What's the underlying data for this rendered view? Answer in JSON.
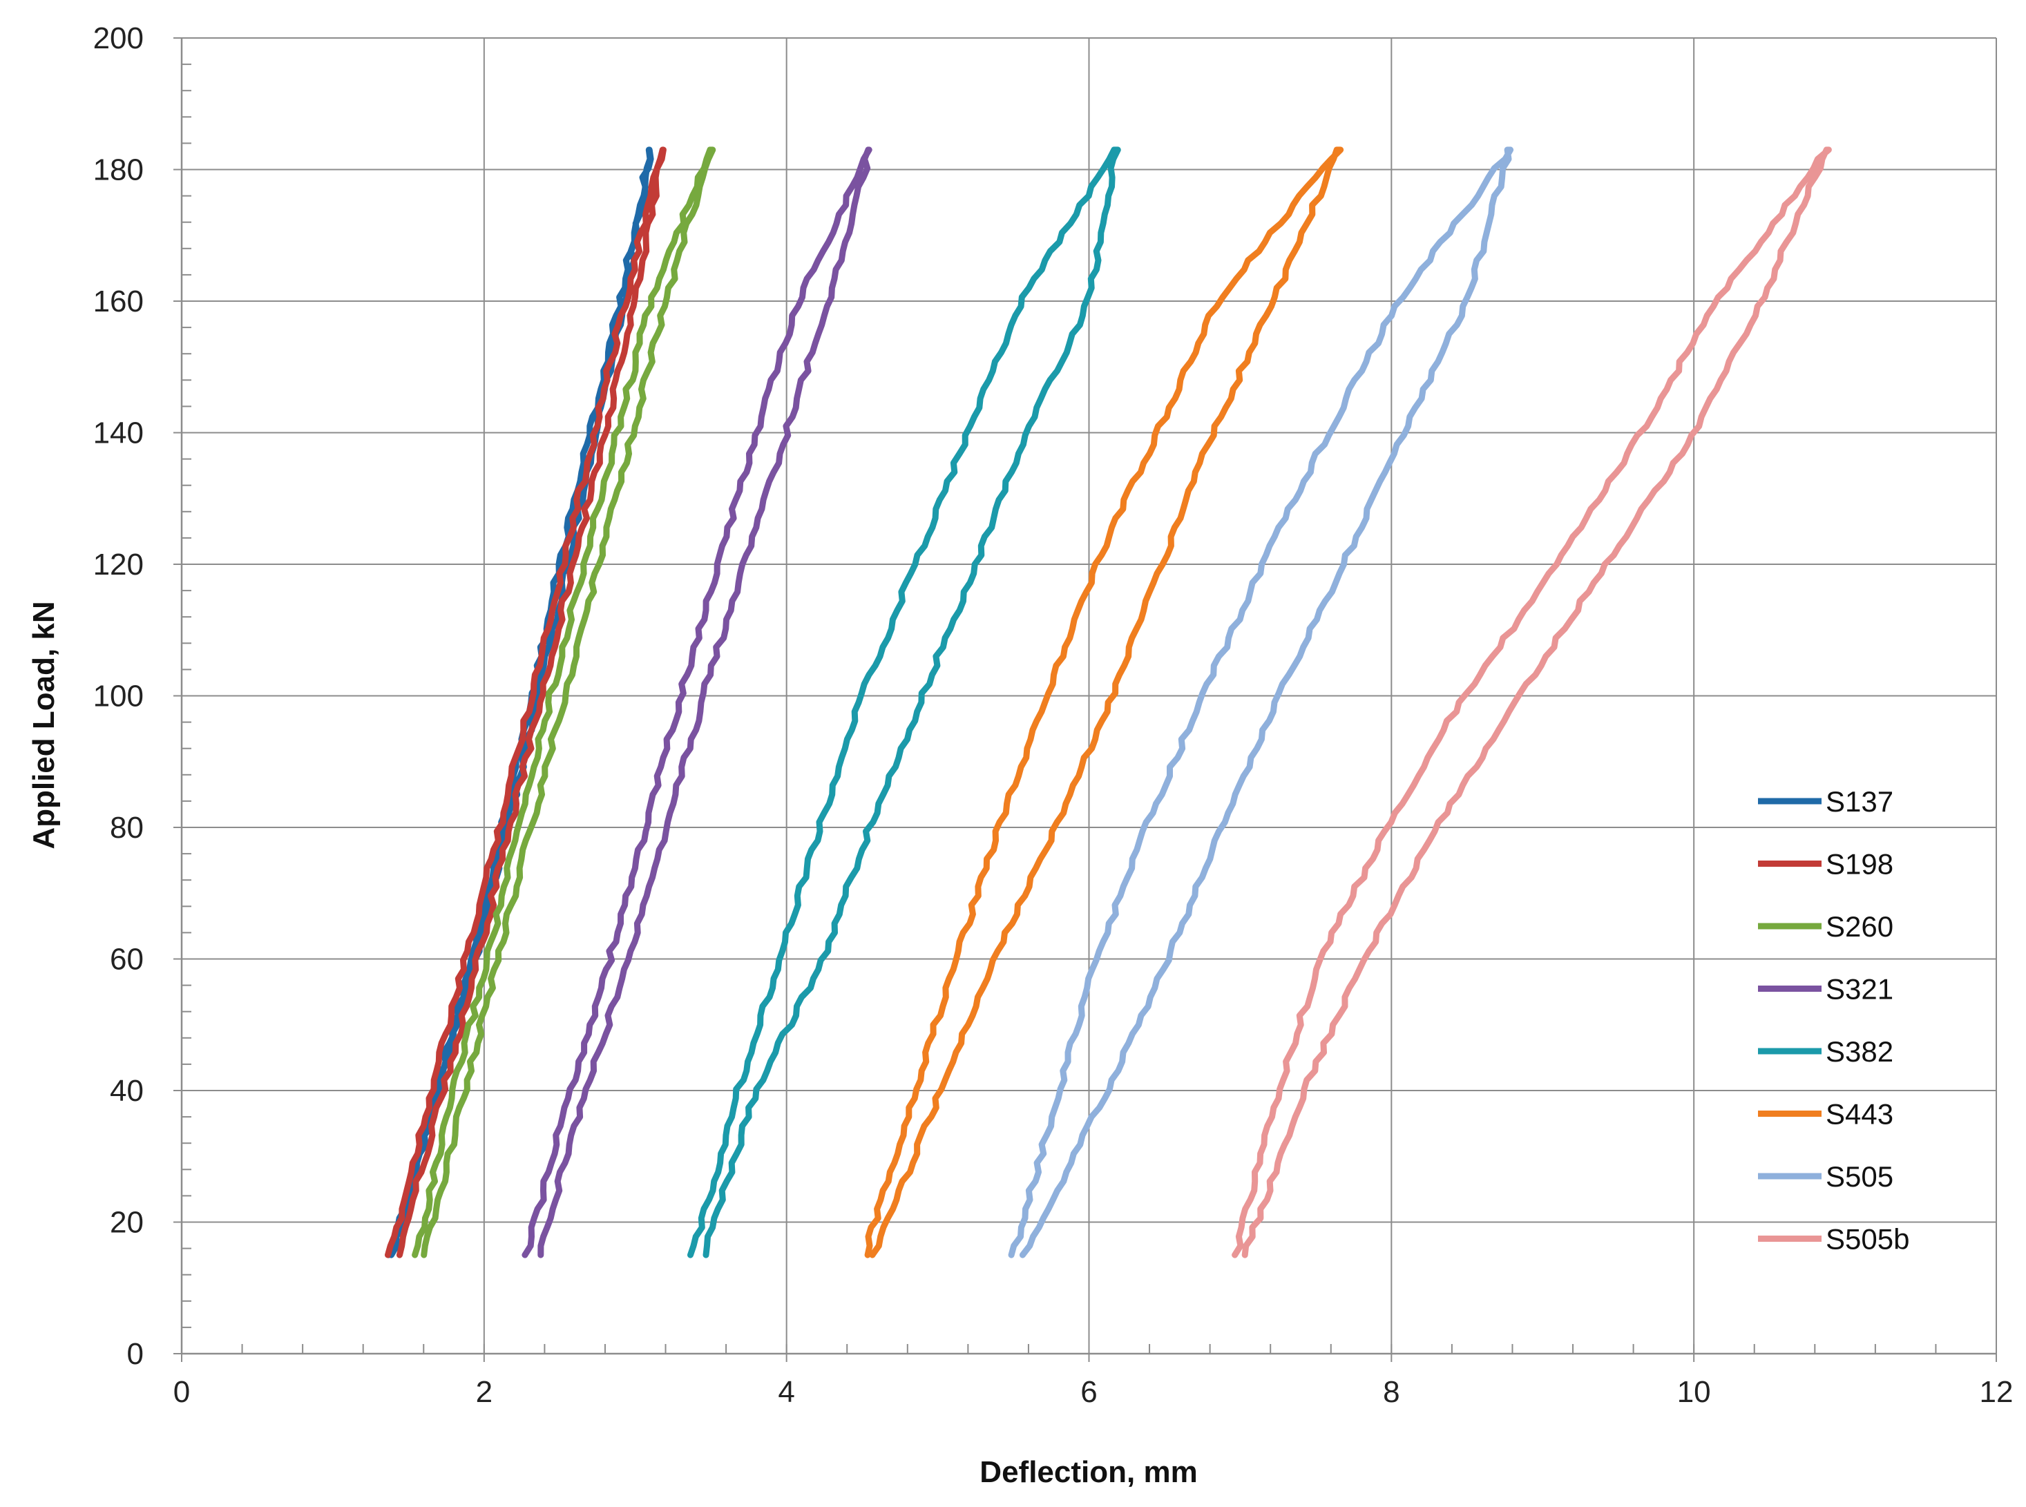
{
  "chart_data": {
    "type": "line",
    "title": "",
    "xlabel": "Deflection, mm",
    "ylabel": "Applied Load, kN",
    "xlim": [
      0,
      12
    ],
    "ylim": [
      0,
      200
    ],
    "x_major_ticks": [
      0,
      2,
      4,
      6,
      8,
      10,
      12
    ],
    "y_major_ticks": [
      0,
      20,
      40,
      60,
      80,
      100,
      120,
      140,
      160,
      180,
      200
    ],
    "x_minor_step": 0.4,
    "y_minor_step": 4,
    "grid": true,
    "legend_position": "bottom-right",
    "series": [
      {
        "name": "S137",
        "color": "#1f6aa8",
        "load_y": [
          15,
          40,
          60,
          80,
          100,
          120,
          140,
          160,
          183
        ],
        "x": [
          1.38,
          1.68,
          1.92,
          2.12,
          2.32,
          2.5,
          2.7,
          2.9,
          3.1
        ],
        "unload_y": [
          183,
          160,
          140,
          120,
          100,
          80,
          60,
          40,
          15
        ],
        "unload_x": [
          3.1,
          2.93,
          2.74,
          2.55,
          2.36,
          2.15,
          1.94,
          1.7,
          1.4
        ]
      },
      {
        "name": "S198",
        "color": "#c23b36",
        "load_y": [
          15,
          40,
          60,
          80,
          100,
          120,
          140,
          160,
          183
        ],
        "x": [
          1.38,
          1.65,
          1.88,
          2.1,
          2.31,
          2.52,
          2.73,
          2.93,
          3.18
        ],
        "unload_y": [
          183,
          160,
          140,
          120,
          100,
          80,
          60,
          40,
          15
        ],
        "unload_x": [
          3.18,
          3.0,
          2.8,
          2.59,
          2.38,
          2.17,
          1.96,
          1.73,
          1.43
        ]
      },
      {
        "name": "S260",
        "color": "#76a93e",
        "load_y": [
          15,
          40,
          60,
          80,
          100,
          120,
          140,
          160,
          183
        ],
        "x": [
          1.55,
          1.8,
          2.02,
          2.23,
          2.44,
          2.66,
          2.88,
          3.1,
          3.5
        ],
        "unload_y": [
          183,
          160,
          140,
          120,
          100,
          80,
          60,
          40,
          15
        ],
        "unload_x": [
          3.5,
          3.2,
          2.98,
          2.76,
          2.53,
          2.31,
          2.09,
          1.87,
          1.61
        ]
      },
      {
        "name": "S321",
        "color": "#7a52a0",
        "load_y": [
          15,
          40,
          60,
          80,
          100,
          120,
          140,
          160,
          183
        ],
        "x": [
          2.28,
          2.57,
          2.83,
          3.07,
          3.3,
          3.55,
          3.8,
          4.08,
          4.55
        ],
        "unload_y": [
          183,
          160,
          140,
          120,
          100,
          80,
          60,
          40,
          15
        ],
        "unload_x": [
          4.55,
          4.28,
          4.0,
          3.72,
          3.45,
          3.21,
          2.96,
          2.67,
          2.36
        ]
      },
      {
        "name": "S382",
        "color": "#1b9aaa",
        "load_y": [
          15,
          40,
          60,
          80,
          100,
          120,
          140,
          160,
          183
        ],
        "x": [
          3.38,
          3.68,
          3.95,
          4.22,
          4.5,
          4.85,
          5.2,
          5.55,
          6.18
        ],
        "unload_y": [
          183,
          160,
          140,
          120,
          100,
          80,
          60,
          40,
          15
        ],
        "unload_x": [
          6.18,
          6.0,
          5.58,
          5.25,
          4.9,
          4.55,
          4.24,
          3.8,
          3.45
        ]
      },
      {
        "name": "S443",
        "color": "#f07e1f",
        "load_y": [
          15,
          40,
          60,
          80,
          100,
          120,
          140,
          160,
          183
        ],
        "x": [
          4.52,
          4.85,
          5.12,
          5.4,
          5.72,
          6.05,
          6.45,
          6.85,
          7.65
        ],
        "unload_y": [
          183,
          160,
          140,
          120,
          100,
          80,
          60,
          40,
          15
        ],
        "unload_x": [
          7.65,
          7.22,
          6.82,
          6.48,
          6.15,
          5.78,
          5.38,
          5.02,
          4.58
        ]
      },
      {
        "name": "S505",
        "color": "#8fb0dc",
        "load_y": [
          15,
          40,
          60,
          80,
          100,
          120,
          140,
          160,
          183
        ],
        "x": [
          5.5,
          5.8,
          6.05,
          6.38,
          6.75,
          7.15,
          7.58,
          8.05,
          8.78
        ],
        "unload_y": [
          183,
          160,
          140,
          120,
          100,
          80,
          60,
          40,
          15
        ],
        "unload_x": [
          8.78,
          8.5,
          8.08,
          7.68,
          7.25,
          6.88,
          6.52,
          6.12,
          5.57
        ]
      },
      {
        "name": "S505b",
        "color": "#e99595",
        "load_y": [
          15,
          40,
          60,
          80,
          100,
          120,
          140,
          160,
          183
        ],
        "x": [
          6.97,
          7.25,
          7.53,
          7.97,
          8.48,
          9.1,
          9.65,
          10.15,
          10.88
        ],
        "unload_y": [
          183,
          160,
          140,
          120,
          100,
          80,
          60,
          40,
          15
        ],
        "unload_x": [
          10.88,
          10.45,
          10.0,
          9.42,
          8.85,
          8.3,
          7.82,
          7.42,
          7.03
        ]
      }
    ]
  }
}
